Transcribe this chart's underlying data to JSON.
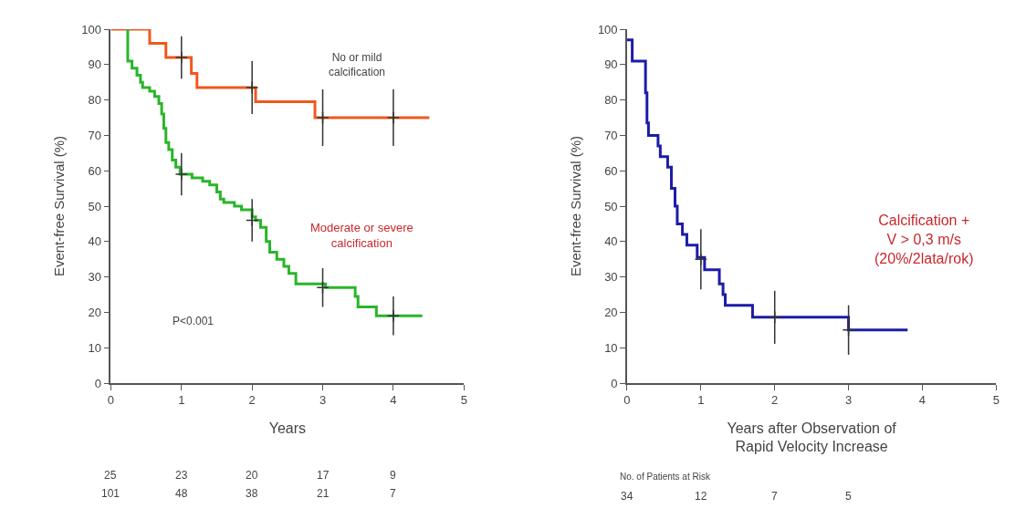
{
  "chart_data": [
    {
      "type": "step",
      "xlabel": "Years",
      "ylabel": "Event-free Survival (%)",
      "xlim": [
        0,
        5
      ],
      "ylim": [
        0,
        100
      ],
      "xticks": [
        0,
        1,
        2,
        3,
        4,
        5
      ],
      "yticks": [
        0,
        10,
        20,
        30,
        40,
        50,
        60,
        70,
        80,
        90,
        100
      ],
      "annotations": [
        "P<0.001",
        "No or mild\ncalcification",
        "Moderate or severe\ncalcification",
        "25 23 20 17 9",
        "101 48 38 21 7"
      ],
      "series": [
        {
          "color": "#f0581e",
          "x": [
            0,
            0.55,
            0.78,
            1.14,
            1.22,
            2.05,
            2.89,
            4.51
          ],
          "values": [
            100,
            96,
            92,
            87.5,
            83.5,
            79.5,
            75,
            75
          ]
        },
        {
          "color": "#2ab52a",
          "x": [
            0.22,
            0.24,
            0.3,
            0.37,
            0.42,
            0.45,
            0.55,
            0.62,
            0.68,
            0.72,
            0.75,
            0.78,
            0.82,
            0.87,
            0.92,
            0.98,
            1.15,
            1.3,
            1.4,
            1.5,
            1.55,
            1.6,
            1.75,
            1.85,
            2.0,
            2.05,
            2.12,
            2.2,
            2.25,
            2.35,
            2.45,
            2.52,
            2.62,
            3.04,
            3.46,
            3.5,
            3.76,
            4.41
          ],
          "values": [
            100,
            91,
            89,
            87,
            85,
            83.5,
            82.5,
            81,
            79,
            76,
            72,
            68,
            66,
            63,
            61,
            59,
            58,
            57,
            56,
            54,
            52,
            51,
            50,
            49,
            47,
            46,
            44,
            40,
            37,
            35,
            33,
            31,
            28,
            27,
            24.5,
            21.5,
            19,
            19
          ]
        },
        {
          "type": "scatter",
          "marker": "cross",
          "color": "#333333",
          "x": [
            1,
            2,
            3,
            4
          ],
          "values": [
            92,
            83.5,
            75,
            75
          ],
          "errors": [
            6,
            7.5,
            8,
            8
          ]
        },
        {
          "type": "scatter",
          "marker": "cross",
          "color": "#333333",
          "x": [
            1,
            2,
            3,
            4
          ],
          "values": [
            59,
            46,
            27,
            19
          ],
          "errors": [
            6,
            6,
            5.5,
            5.5
          ]
        }
      ]
    },
    {
      "type": "step",
      "xlabel": "Years after Observation of\nRapid Velocity Increase",
      "ylabel": "Event-free Survival (%)",
      "xlim": [
        0,
        5
      ],
      "ylim": [
        0,
        100
      ],
      "xticks": [
        0,
        1,
        2,
        3,
        4,
        5
      ],
      "yticks": [
        0,
        10,
        20,
        30,
        40,
        50,
        60,
        70,
        80,
        90,
        100
      ],
      "annotations": [
        "Calcification +\nV > 0,3 m/s\n(20%/2lata/rok)",
        "No. of Patients at Risk",
        "34 12 7 5"
      ],
      "series": [
        {
          "color": "#1c1ca8",
          "x": [
            0,
            0.07,
            0.25,
            0.27,
            0.29,
            0.42,
            0.45,
            0.55,
            0.6,
            0.65,
            0.68,
            0.75,
            0.81,
            0.95,
            1.05,
            1.25,
            1.3,
            1.33,
            1.7,
            3.0,
            3.8
          ],
          "values": [
            97,
            91,
            82,
            73.5,
            70,
            67,
            64,
            61,
            55,
            50,
            45,
            42,
            39,
            35.5,
            32,
            28,
            25,
            22,
            18.6,
            15,
            15
          ]
        },
        {
          "type": "scatter",
          "marker": "cross",
          "color": "#333333",
          "x": [
            1,
            2,
            3
          ],
          "values": [
            35,
            18.6,
            15
          ],
          "errors": [
            8.5,
            7.5,
            7
          ]
        }
      ]
    }
  ]
}
